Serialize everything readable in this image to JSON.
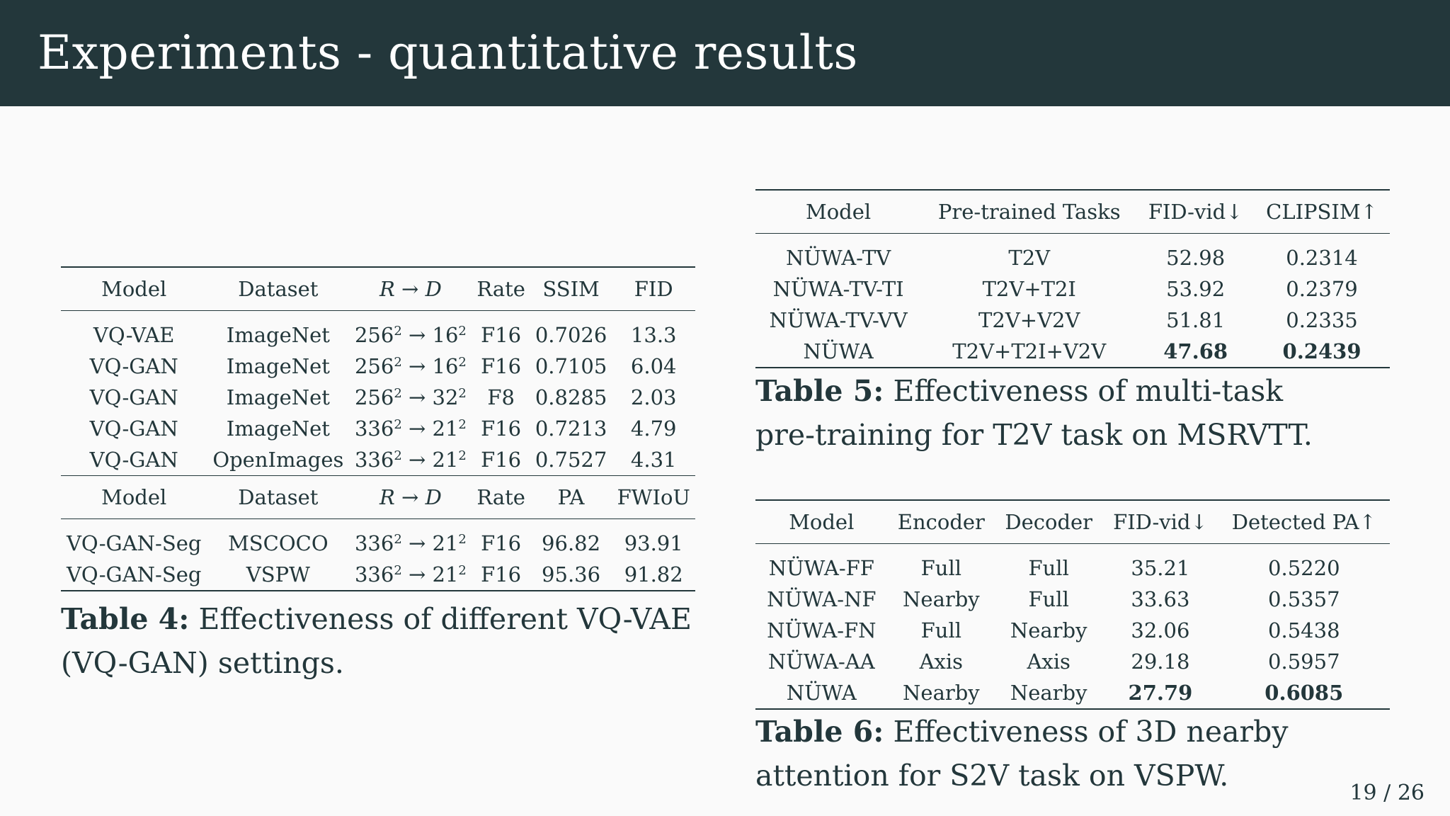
{
  "slide": {
    "title": "Experiments - quantitative results",
    "page": "19 / 26"
  },
  "table4": {
    "header1": [
      "Model",
      "Dataset",
      "R → D",
      "Rate",
      "SSIM",
      "FID"
    ],
    "rows1": [
      {
        "model": "VQ-VAE",
        "dataset": "ImageNet",
        "r": "256",
        "d": "16",
        "rate": "F16",
        "m1": "0.7026",
        "m2": "13.3"
      },
      {
        "model": "VQ-GAN",
        "dataset": "ImageNet",
        "r": "256",
        "d": "16",
        "rate": "F16",
        "m1": "0.7105",
        "m2": "6.04"
      },
      {
        "model": "VQ-GAN",
        "dataset": "ImageNet",
        "r": "256",
        "d": "32",
        "rate": "F8",
        "m1": "0.8285",
        "m2": "2.03"
      },
      {
        "model": "VQ-GAN",
        "dataset": "ImageNet",
        "r": "336",
        "d": "21",
        "rate": "F16",
        "m1": "0.7213",
        "m2": "4.79"
      },
      {
        "model": "VQ-GAN",
        "dataset": "OpenImages",
        "r": "336",
        "d": "21",
        "rate": "F16",
        "m1": "0.7527",
        "m2": "4.31"
      }
    ],
    "header2": [
      "Model",
      "Dataset",
      "R → D",
      "Rate",
      "PA",
      "FWIoU"
    ],
    "rows2": [
      {
        "model": "VQ-GAN-Seg",
        "dataset": "MSCOCO",
        "r": "336",
        "d": "21",
        "rate": "F16",
        "m1": "96.82",
        "m2": "93.91"
      },
      {
        "model": "VQ-GAN-Seg",
        "dataset": "VSPW",
        "r": "336",
        "d": "21",
        "rate": "F16",
        "m1": "95.36",
        "m2": "91.82"
      }
    ],
    "caption_label": "Table 4:",
    "caption_line1": "Effectiveness of different VQ-VAE",
    "caption_line2": "(VQ-GAN) settings."
  },
  "table5": {
    "header": [
      "Model",
      "Pre-trained Tasks",
      "FID-vid↓",
      "CLIPSIM↑"
    ],
    "rows": [
      {
        "model": "NÜWA-TV",
        "tasks": "T2V",
        "fid": "52.98",
        "clip": "0.2314"
      },
      {
        "model": "NÜWA-TV-TI",
        "tasks": "T2V+T2I",
        "fid": "53.92",
        "clip": "0.2379"
      },
      {
        "model": "NÜWA-TV-VV",
        "tasks": "T2V+V2V",
        "fid": "51.81",
        "clip": "0.2335"
      },
      {
        "model": "NÜWA",
        "tasks": "T2V+T2I+V2V",
        "fid": "47.68",
        "clip": "0.2439"
      }
    ],
    "caption_label": "Table 5:",
    "caption_line1": "Effectiveness of multi-task",
    "caption_line2": "pre-training for T2V task on MSRVTT."
  },
  "table6": {
    "header": [
      "Model",
      "Encoder",
      "Decoder",
      "FID-vid↓",
      "Detected PA↑"
    ],
    "rows": [
      {
        "model": "NÜWA-FF",
        "enc": "Full",
        "dec": "Full",
        "fid": "35.21",
        "pa": "0.5220"
      },
      {
        "model": "NÜWA-NF",
        "enc": "Nearby",
        "dec": "Full",
        "fid": "33.63",
        "pa": "0.5357"
      },
      {
        "model": "NÜWA-FN",
        "enc": "Full",
        "dec": "Nearby",
        "fid": "32.06",
        "pa": "0.5438"
      },
      {
        "model": "NÜWA-AA",
        "enc": "Axis",
        "dec": "Axis",
        "fid": "29.18",
        "pa": "0.5957"
      },
      {
        "model": "NÜWA",
        "enc": "Nearby",
        "dec": "Nearby",
        "fid": "27.79",
        "pa": "0.6085"
      }
    ],
    "caption_label": "Table 6:",
    "caption_line1": "Effectiveness of 3D nearby",
    "caption_line2": "attention for S2V task on VSPW."
  }
}
